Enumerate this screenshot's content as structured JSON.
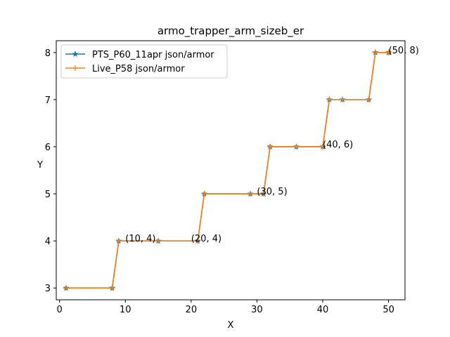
{
  "chart_data": {
    "type": "line",
    "title": "armo_trapper_arm_sizeb_er",
    "xlabel": "X",
    "ylabel": "Y",
    "xlim": [
      -0.5,
      52.5
    ],
    "ylim": [
      2.75,
      8.25
    ],
    "xticks": [
      0,
      10,
      20,
      30,
      40,
      50
    ],
    "yticks": [
      3,
      4,
      5,
      6,
      7,
      8
    ],
    "grid": false,
    "legend_position": "top-left",
    "series": [
      {
        "name": "PTS_P60_11apr json/armor",
        "color": "#1f77b4",
        "marker": "star",
        "x": [
          1,
          8,
          9,
          15,
          21,
          22,
          29,
          31,
          32,
          36,
          40,
          41,
          43,
          47,
          48,
          50
        ],
        "y": [
          3,
          3,
          4,
          4,
          4,
          5,
          5,
          5,
          6,
          6,
          6,
          7,
          7,
          7,
          8,
          8
        ]
      },
      {
        "name": "Live_P58 json/armor",
        "color": "#ff7f0e",
        "marker": "plus",
        "x": [
          1,
          8,
          9,
          15,
          21,
          22,
          29,
          31,
          32,
          36,
          40,
          41,
          43,
          47,
          48,
          50
        ],
        "y": [
          3,
          3,
          4,
          4,
          4,
          5,
          5,
          5,
          6,
          6,
          6,
          7,
          7,
          7,
          8,
          8
        ]
      }
    ],
    "annotations": [
      {
        "text": "(10, 4)",
        "x": 10,
        "y": 4
      },
      {
        "text": "(20, 4)",
        "x": 20,
        "y": 4
      },
      {
        "text": "(30, 5)",
        "x": 30,
        "y": 5
      },
      {
        "text": "(40, 6)",
        "x": 40,
        "y": 6
      },
      {
        "text": "(50, 8)",
        "x": 50,
        "y": 8
      }
    ]
  }
}
